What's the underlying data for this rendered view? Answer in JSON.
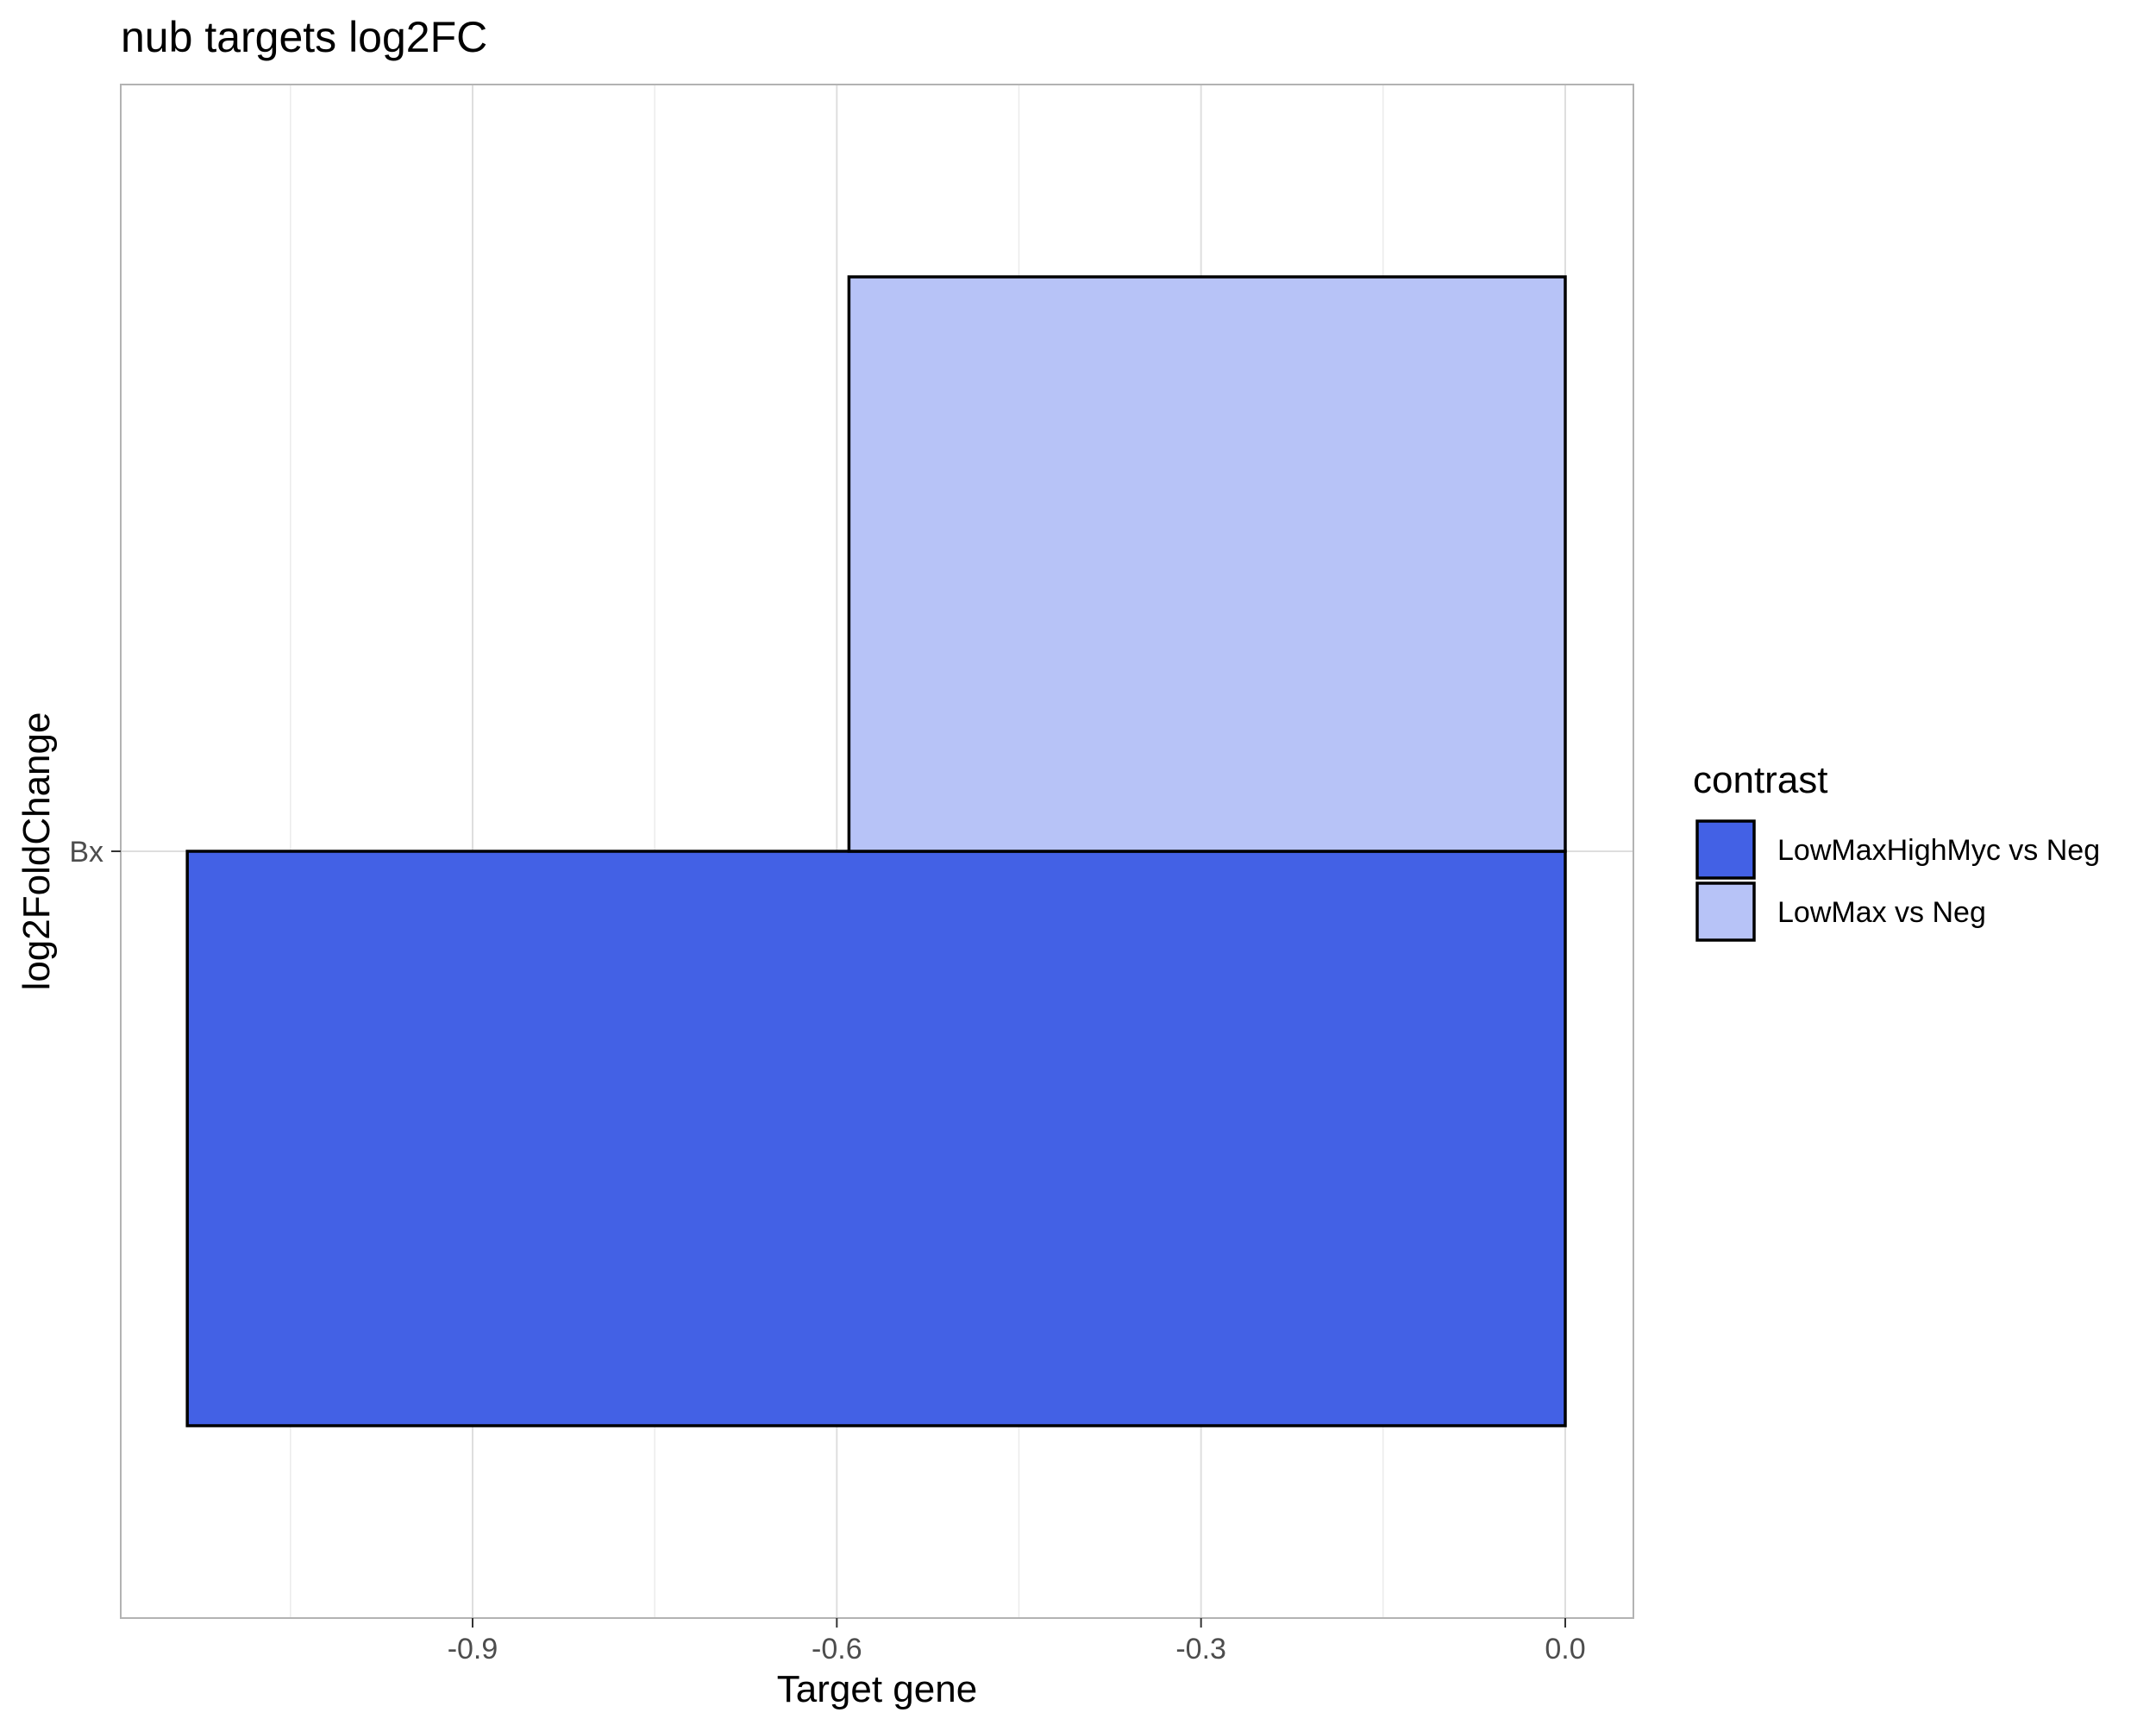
{
  "chart_data": {
    "type": "bar",
    "orientation": "horizontal",
    "bar_layout": "dodge",
    "title": "nub targets log2FC",
    "xlabel": "Target gene",
    "ylabel": "log2FoldChange",
    "categories": [
      "Bx"
    ],
    "xlim": [
      -1.135,
      0.055
    ],
    "x_ticks": [
      -0.9,
      -0.6,
      -0.3,
      0.0
    ],
    "x_tick_labels": [
      "-0.9",
      "-0.6",
      "-0.3",
      "0.0"
    ],
    "series": [
      {
        "name": "LowMaxHighMyc vs Neg",
        "values": [
          -1.135
        ],
        "color": "#4361e5"
      },
      {
        "name": "LowMax vs Neg",
        "values": [
          -0.59
        ],
        "color": "#b7c3f7"
      }
    ],
    "legend": {
      "title": "contrast",
      "placement": "right"
    },
    "grid": true,
    "background": "#ffffff"
  }
}
